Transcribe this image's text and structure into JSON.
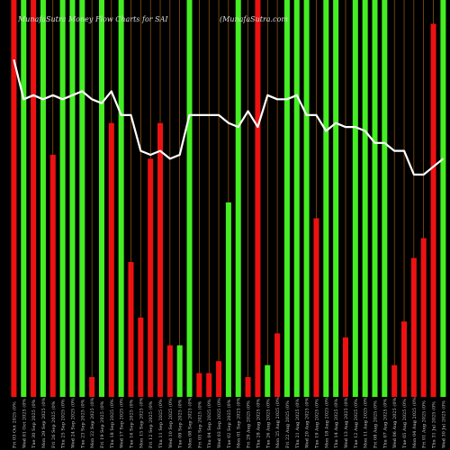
{
  "chart_data": {
    "type": "bar",
    "title": "MunafaSutra Money Flow Charts for SAI",
    "source": "(MunafaSutra.com",
    "colors": {
      "up": "#44ee22",
      "down": "#ee1111",
      "line": "#ffffff",
      "grid": "#b86a10",
      "background": "#000000"
    },
    "ylim": [
      0,
      100
    ],
    "bars": [
      {
        "label": "Fri 03 Oct 2025 (0%",
        "color": "down",
        "value": 100
      },
      {
        "label": "Wed 01 Oct 2025 (0%",
        "color": "up",
        "value": 100
      },
      {
        "label": "Tue 30 Sep 2025 (0%",
        "color": "down",
        "value": 100
      },
      {
        "label": "Mon 29 Sep 2025 (0%",
        "color": "up",
        "value": 100
      },
      {
        "label": "Fri 26 Sep 2025 (0%",
        "color": "down",
        "value": 61
      },
      {
        "label": "Thu 25 Sep 2025 (0%",
        "color": "up",
        "value": 100
      },
      {
        "label": "Wed 24 Sep 2025 (0%",
        "color": "up",
        "value": 100
      },
      {
        "label": "Tue 23 Sep 2025 (0%",
        "color": "up",
        "value": 100
      },
      {
        "label": "Mon 22 Sep 2025 (0%",
        "color": "down",
        "value": 5
      },
      {
        "label": "Fri 19 Sep 2025 (0%",
        "color": "up",
        "value": 100
      },
      {
        "label": "Thu 18 Sep 2025 (0%",
        "color": "down",
        "value": 69
      },
      {
        "label": "Wed 17 Sep 2025 (0%",
        "color": "up",
        "value": 100
      },
      {
        "label": "Tue 16 Sep 2025 (0%",
        "color": "down",
        "value": 34
      },
      {
        "label": "Mon 15 Sep 2025 (0%",
        "color": "down",
        "value": 20
      },
      {
        "label": "Fri 12 Sep 2025 (0%",
        "color": "down",
        "value": 60
      },
      {
        "label": "Thu 11 Sep 2025 (0%",
        "color": "down",
        "value": 69
      },
      {
        "label": "Wed 10 Sep 2025 (0%",
        "color": "down",
        "value": 13
      },
      {
        "label": "Tue 09 Sep 2025 (0%",
        "color": "up",
        "value": 13
      },
      {
        "label": "Mon 08 Sep 2025 (0%",
        "color": "up",
        "value": 100
      },
      {
        "label": "Fri 05 Sep 2025 (0%",
        "color": "down",
        "value": 6
      },
      {
        "label": "Thu 04 Sep 2025 (0%",
        "color": "down",
        "value": 6
      },
      {
        "label": "Wed 03 Sep 2025 (0%",
        "color": "down",
        "value": 9
      },
      {
        "label": "Tue 02 Sep 2025 (0%",
        "color": "up",
        "value": 49
      },
      {
        "label": "Mon 01 Sep 2025 (0%",
        "color": "up",
        "value": 100
      },
      {
        "label": "Fri 29 Aug 2025 (0%",
        "color": "down",
        "value": 5
      },
      {
        "label": "Thu 28 Aug 2025 (0%",
        "color": "down",
        "value": 100
      },
      {
        "label": "Tue 26 Aug 2025 (0%",
        "color": "up",
        "value": 8
      },
      {
        "label": "Mon 25 Aug 2025 (0%",
        "color": "down",
        "value": 16
      },
      {
        "label": "Fri 22 Aug 2025 (0%",
        "color": "up",
        "value": 100
      },
      {
        "label": "Thu 21 Aug 2025 (0%",
        "color": "up",
        "value": 100
      },
      {
        "label": "Wed 20 Aug 2025 (0%",
        "color": "up",
        "value": 100
      },
      {
        "label": "Tue 19 Aug 2025 (0%",
        "color": "down",
        "value": 45
      },
      {
        "label": "Mon 18 Aug 2025 (0%",
        "color": "up",
        "value": 100
      },
      {
        "label": "Thu 14 Aug 2025 (0%",
        "color": "up",
        "value": 100
      },
      {
        "label": "Wed 13 Aug 2025 (0%",
        "color": "down",
        "value": 15
      },
      {
        "label": "Tue 12 Aug 2025 (0%",
        "color": "up",
        "value": 100
      },
      {
        "label": "Mon 11 Aug 2025 (0%",
        "color": "up",
        "value": 100
      },
      {
        "label": "Fri 08 Aug 2025 (0%",
        "color": "up",
        "value": 100
      },
      {
        "label": "Thu 07 Aug 2025 (0%",
        "color": "up",
        "value": 100
      },
      {
        "label": "Wed 06 Aug 2025 (0%",
        "color": "down",
        "value": 8
      },
      {
        "label": "Tue 05 Aug 2025 (0%",
        "color": "down",
        "value": 19
      },
      {
        "label": "Mon 04 Aug 2025 (0%",
        "color": "down",
        "value": 35
      },
      {
        "label": "Fri 01 Aug 2025 (0%",
        "color": "down",
        "value": 40
      },
      {
        "label": "Thu 31 Jul 2025 (0%",
        "color": "down",
        "value": 94
      },
      {
        "label": "Wed 30 Jul 2025 (0%",
        "color": "up",
        "value": 100
      }
    ],
    "line": [
      85,
      75,
      76,
      75,
      76,
      75,
      76,
      77,
      75,
      74,
      77,
      71,
      71,
      62,
      61,
      62,
      60,
      61,
      71,
      71,
      71,
      71,
      69,
      68,
      72,
      68,
      76,
      75,
      75,
      76,
      71,
      71,
      67,
      69,
      68,
      68,
      67,
      64,
      64,
      62,
      62,
      56,
      56,
      58,
      60
    ]
  }
}
